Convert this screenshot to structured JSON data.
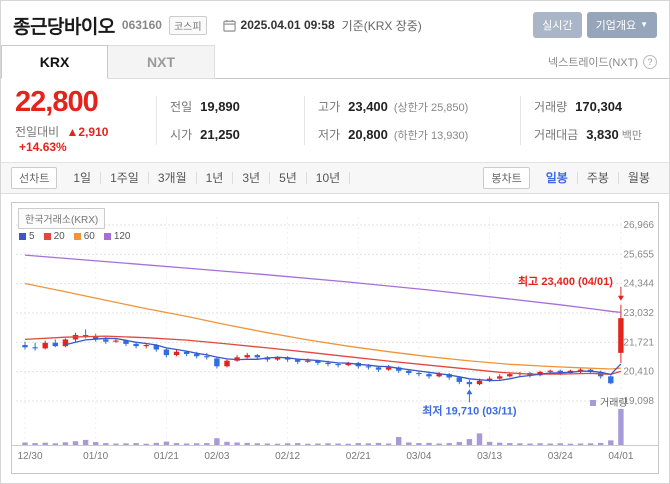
{
  "header": {
    "stock_name": "종근당바이오",
    "stock_code": "063160",
    "market_badge": "코스피",
    "datetime": "2025.04.01 09:58",
    "datetime_suffix": "기준(KRX 장중)",
    "realtime_button": "실시간",
    "company_overview_button": "기업개요"
  },
  "tabs": {
    "krx": "KRX",
    "nxt": "NXT",
    "right_label": "넥스트레이드(NXT)",
    "help_icon": "?"
  },
  "price": {
    "current": "22,800",
    "change_label": "전일대비",
    "change_arrow": "▲",
    "change_value": "2,910",
    "change_percent": "+14.63%",
    "table": {
      "prev_label": "전일",
      "prev_value": "19,890",
      "open_label": "시가",
      "open_value": "21,250",
      "high_label": "고가",
      "high_value": "23,400",
      "upper_limit": "(상한가 25,850)",
      "low_label": "저가",
      "low_value": "20,800",
      "lower_limit": "(하한가 13,930)",
      "volume_label": "거래량",
      "volume_value": "170,304",
      "amount_label": "거래대금",
      "amount_value": "3,830",
      "amount_unit": "백만"
    }
  },
  "toolbar": {
    "line_chart_label": "선차트",
    "periods": [
      "1일",
      "1주일",
      "3개월",
      "1년",
      "3년",
      "5년",
      "10년"
    ],
    "candle_chart_label": "봉차트",
    "candle_periods": [
      "일봉",
      "주봉",
      "월봉"
    ],
    "active_candle_period": "일봉"
  },
  "chart_data": {
    "type": "candlestick",
    "source_label": "한국거래소(KRX)",
    "volume_label": "거래량",
    "legend": [
      {
        "label": "5",
        "color": "#3b57c8"
      },
      {
        "label": "20",
        "color": "#e0483f"
      },
      {
        "label": "60",
        "color": "#f09439"
      },
      {
        "label": "120",
        "color": "#a66fd6"
      }
    ],
    "colors": {
      "up": "#e5231d",
      "down": "#2f6de0",
      "ma5": "#3b57c8",
      "ma20": "#e0483f",
      "ma60": "#f09439",
      "ma120": "#a66fd6",
      "volume": "#a89ad6",
      "grid": "#e2e2e2",
      "axis_text": "#888888",
      "annotation_low": "#3c6ae4"
    },
    "y_ticks": [
      {
        "v": 26966,
        "label": "26,966"
      },
      {
        "v": 25655,
        "label": "25,655"
      },
      {
        "v": 24344,
        "label": "24,344"
      },
      {
        "v": 23032,
        "label": "23,032"
      },
      {
        "v": 21721,
        "label": "21,721"
      },
      {
        "v": 20410,
        "label": "20,410"
      },
      {
        "v": 19098,
        "label": "19,098"
      }
    ],
    "x_ticks": [
      {
        "i": 0,
        "label": "12/30"
      },
      {
        "i": 7,
        "label": "01/10"
      },
      {
        "i": 14,
        "label": "01/21"
      },
      {
        "i": 19,
        "label": "02/03"
      },
      {
        "i": 26,
        "label": "02/12"
      },
      {
        "i": 33,
        "label": "02/21"
      },
      {
        "i": 39,
        "label": "03/04"
      },
      {
        "i": 46,
        "label": "03/13"
      },
      {
        "i": 53,
        "label": "03/24"
      },
      {
        "i": 59,
        "label": "04/01"
      }
    ],
    "candles": {
      "date": [
        "12/30",
        "01/02",
        "01/03",
        "01/06",
        "01/07",
        "01/08",
        "01/09",
        "01/10",
        "01/13",
        "01/14",
        "01/15",
        "01/16",
        "01/17",
        "01/20",
        "01/21",
        "01/22",
        "01/23",
        "01/24",
        "01/31",
        "02/03",
        "02/04",
        "02/05",
        "02/06",
        "02/07",
        "02/10",
        "02/11",
        "02/12",
        "02/13",
        "02/14",
        "02/17",
        "02/18",
        "02/19",
        "02/20",
        "02/21",
        "02/24",
        "02/25",
        "02/26",
        "02/27",
        "02/28",
        "03/04",
        "03/05",
        "03/06",
        "03/07",
        "03/10",
        "03/11",
        "03/12",
        "03/13",
        "03/14",
        "03/17",
        "03/18",
        "03/19",
        "03/20",
        "03/21",
        "03/24",
        "03/25",
        "03/26",
        "03/27",
        "03/28",
        "03/31",
        "04/01"
      ],
      "open": [
        21600,
        21500,
        21450,
        21700,
        21550,
        21850,
        22050,
        22000,
        21850,
        21750,
        21800,
        21650,
        21550,
        21600,
        21400,
        21150,
        21300,
        21200,
        21100,
        21000,
        20650,
        20900,
        21050,
        21150,
        21050,
        20950,
        21050,
        20950,
        20850,
        20900,
        20800,
        20750,
        20700,
        20800,
        20650,
        20600,
        20500,
        20600,
        20450,
        20350,
        20300,
        20200,
        20300,
        20150,
        19950,
        19850,
        20000,
        20100,
        20200,
        20300,
        20350,
        20250,
        20400,
        20450,
        20350,
        20450,
        20500,
        20400,
        20200,
        21250
      ],
      "high": [
        21750,
        21700,
        21800,
        21850,
        21900,
        22150,
        22300,
        22100,
        21950,
        21900,
        21850,
        21750,
        21700,
        21650,
        21450,
        21400,
        21350,
        21300,
        21250,
        21050,
        20950,
        21150,
        21250,
        21200,
        21100,
        21100,
        21100,
        21000,
        21000,
        20950,
        20900,
        20800,
        20850,
        20850,
        20750,
        20650,
        20700,
        20650,
        20500,
        20450,
        20350,
        20400,
        20350,
        20200,
        20050,
        20100,
        20200,
        20300,
        20350,
        20400,
        20400,
        20450,
        20500,
        20500,
        20500,
        20550,
        20550,
        20450,
        20250,
        23400
      ],
      "low": [
        21400,
        21350,
        21400,
        21500,
        21500,
        21750,
        21900,
        21750,
        21650,
        21700,
        21550,
        21450,
        21450,
        21300,
        21050,
        21100,
        21100,
        21000,
        20950,
        20550,
        20600,
        20850,
        21000,
        20950,
        20850,
        20900,
        20850,
        20750,
        20800,
        20700,
        20650,
        20600,
        20650,
        20550,
        20500,
        20400,
        20450,
        20350,
        20250,
        20200,
        20100,
        20150,
        20050,
        19850,
        19710,
        19800,
        19950,
        20050,
        20150,
        20200,
        20150,
        20200,
        20300,
        20250,
        20300,
        20350,
        20300,
        20100,
        19850,
        20800
      ],
      "close": [
        21500,
        21450,
        21700,
        21550,
        21850,
        22050,
        22000,
        21850,
        21750,
        21800,
        21650,
        21550,
        21600,
        21400,
        21150,
        21300,
        21200,
        21100,
        21050,
        20650,
        20900,
        21050,
        21150,
        21050,
        20950,
        21050,
        20950,
        20850,
        20900,
        20800,
        20750,
        20700,
        20800,
        20650,
        20600,
        20500,
        20600,
        20450,
        20350,
        20300,
        20200,
        20300,
        20150,
        19950,
        19850,
        20000,
        20100,
        20200,
        20300,
        20350,
        20250,
        20400,
        20450,
        20350,
        20450,
        20500,
        20400,
        20200,
        19890,
        22800
      ],
      "volume": [
        12000,
        9000,
        11000,
        8000,
        13000,
        18000,
        24000,
        14000,
        9000,
        7000,
        8000,
        9000,
        6000,
        10000,
        16000,
        9000,
        7000,
        8000,
        9000,
        32000,
        15000,
        12000,
        10000,
        8000,
        7000,
        6000,
        8000,
        9000,
        6000,
        7000,
        8000,
        7000,
        6000,
        9000,
        8000,
        10000,
        7000,
        38000,
        12000,
        9000,
        10000,
        7000,
        9000,
        14000,
        28000,
        55000,
        15000,
        11000,
        9000,
        8000,
        7000,
        8000,
        7000,
        8000,
        6000,
        7000,
        8000,
        10000,
        22000,
        170304
      ]
    },
    "ma20": [
      [
        0,
        21850
      ],
      [
        4,
        21950
      ],
      [
        8,
        22000
      ],
      [
        12,
        21930
      ],
      [
        16,
        21820
      ],
      [
        20,
        21650
      ],
      [
        24,
        21470
      ],
      [
        28,
        21280
      ],
      [
        32,
        21080
      ],
      [
        36,
        20880
      ],
      [
        40,
        20700
      ],
      [
        44,
        20520
      ],
      [
        47,
        20380
      ],
      [
        50,
        20300
      ],
      [
        53,
        20300
      ],
      [
        56,
        20330
      ],
      [
        58,
        20290
      ],
      [
        59,
        20420
      ]
    ],
    "ma60": [
      [
        0,
        24350
      ],
      [
        4,
        23980
      ],
      [
        8,
        23600
      ],
      [
        12,
        23230
      ],
      [
        16,
        22880
      ],
      [
        20,
        22500
      ],
      [
        24,
        22150
      ],
      [
        28,
        21830
      ],
      [
        32,
        21550
      ],
      [
        36,
        21300
      ],
      [
        40,
        21080
      ],
      [
        44,
        20890
      ],
      [
        48,
        20740
      ],
      [
        52,
        20640
      ],
      [
        55,
        20580
      ],
      [
        58,
        20530
      ],
      [
        59,
        20570
      ]
    ],
    "ma120": [
      [
        0,
        25620
      ],
      [
        8,
        25330
      ],
      [
        16,
        25040
      ],
      [
        24,
        24740
      ],
      [
        32,
        24420
      ],
      [
        40,
        24060
      ],
      [
        48,
        23660
      ],
      [
        53,
        23400
      ],
      [
        56,
        23230
      ],
      [
        58,
        23110
      ],
      [
        59,
        23060
      ]
    ],
    "annotations": {
      "high": {
        "i": 59,
        "price": 23400,
        "text": "최고 23,400 (04/01)"
      },
      "low": {
        "i": 44,
        "price": 19710,
        "text": "최저 19,710 (03/11)"
      }
    }
  }
}
